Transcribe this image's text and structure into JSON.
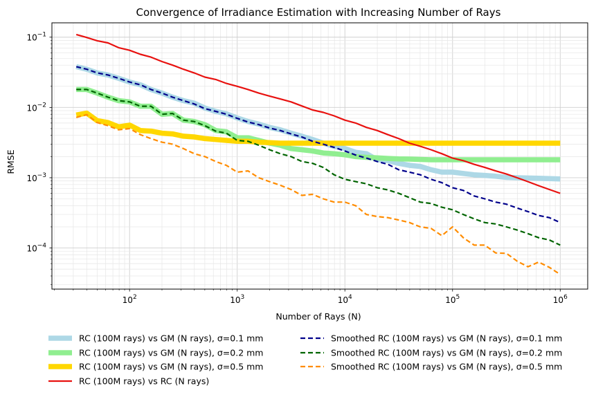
{
  "chart_data": {
    "type": "line",
    "title": "Convergence of Irradiance Estimation with Increasing Number of Rays",
    "xlabel": "Number of Rays (N)",
    "ylabel": "RMSE",
    "xscale": "log",
    "yscale": "log",
    "xlim": [
      19,
      1800000
    ],
    "ylim": [
      2.6e-05,
      0.16
    ],
    "grid": "on (major and minor)",
    "legend_placement": "below plot, two columns",
    "x_ticks": [
      {
        "label": "10",
        "sup": "2",
        "value": 100
      },
      {
        "label": "10",
        "sup": "3",
        "value": 1000
      },
      {
        "label": "10",
        "sup": "4",
        "value": 10000
      },
      {
        "label": "10",
        "sup": "5",
        "value": 100000
      },
      {
        "label": "10",
        "sup": "6",
        "value": 1000000
      }
    ],
    "y_ticks": [
      {
        "label": "10",
        "sup": "−1",
        "value": 0.1
      },
      {
        "label": "10",
        "sup": "−2",
        "value": 0.01
      },
      {
        "label": "10",
        "sup": "−3",
        "value": 0.001
      },
      {
        "label": "10",
        "sup": "−4",
        "value": 0.0001
      }
    ],
    "x": [
      32,
      40,
      50,
      63,
      79,
      100,
      126,
      158,
      200,
      251,
      316,
      398,
      501,
      631,
      794,
      1000,
      1259,
      1585,
      1995,
      2512,
      3162,
      3981,
      5012,
      6310,
      7943,
      10000,
      12589,
      15849,
      19953,
      25119,
      31623,
      39811,
      50119,
      63096,
      79433,
      100000,
      125893,
      158489,
      199526,
      251189,
      316228,
      398107,
      501187,
      630957,
      794328,
      1000000
    ],
    "series": [
      {
        "name": "RC (100M rays) vs GM (N rays), σ=0.1 mm",
        "color": "#add8e6",
        "style": "solid-thick",
        "values": [
          0.038,
          0.035,
          0.031,
          0.029,
          0.026,
          0.023,
          0.021,
          0.018,
          0.016,
          0.014,
          0.0125,
          0.0115,
          0.0098,
          0.0088,
          0.0081,
          0.0071,
          0.0063,
          0.0058,
          0.0052,
          0.0048,
          0.0043,
          0.0039,
          0.0035,
          0.0031,
          0.0028,
          0.0026,
          0.0023,
          0.0022,
          0.0018,
          0.00175,
          0.0016,
          0.0015,
          0.00145,
          0.0013,
          0.0012,
          0.0012,
          0.00115,
          0.0011,
          0.00108,
          0.00105,
          0.00101,
          0.001,
          0.00099,
          0.00098,
          0.00097,
          0.00096
        ]
      },
      {
        "name": "RC (100M rays) vs GM (N rays), σ=0.2 mm",
        "color": "#90ee90",
        "style": "solid-thick",
        "values": [
          0.018,
          0.018,
          0.016,
          0.014,
          0.0125,
          0.012,
          0.0104,
          0.0104,
          0.008,
          0.0082,
          0.0066,
          0.0063,
          0.0057,
          0.0047,
          0.0045,
          0.0037,
          0.0037,
          0.0034,
          0.0031,
          0.0029,
          0.0026,
          0.0025,
          0.0024,
          0.00225,
          0.0022,
          0.00212,
          0.002,
          0.00195,
          0.00192,
          0.00188,
          0.00185,
          0.00184,
          0.00182,
          0.0018,
          0.0018,
          0.0018,
          0.0018,
          0.0018,
          0.0018,
          0.0018,
          0.0018,
          0.0018,
          0.0018,
          0.0018,
          0.0018,
          0.0018
        ]
      },
      {
        "name": "RC (100M rays) vs GM (N rays), σ=0.5 mm",
        "color": "#ffd700",
        "style": "solid-thick",
        "values": [
          0.0078,
          0.0083,
          0.0065,
          0.0061,
          0.0053,
          0.0056,
          0.0047,
          0.0046,
          0.0043,
          0.0042,
          0.0039,
          0.0038,
          0.0036,
          0.0035,
          0.0034,
          0.0033,
          0.0033,
          0.0032,
          0.00315,
          0.0031,
          0.0031,
          0.0031,
          0.0031,
          0.0031,
          0.0031,
          0.0031,
          0.0031,
          0.0031,
          0.0031,
          0.0031,
          0.0031,
          0.0031,
          0.0031,
          0.0031,
          0.0031,
          0.0031,
          0.0031,
          0.0031,
          0.0031,
          0.0031,
          0.0031,
          0.0031,
          0.0031,
          0.0031,
          0.0031,
          0.0031
        ]
      },
      {
        "name": "RC (100M rays) vs RC (N rays)",
        "color": "#e8110f",
        "style": "solid",
        "values": [
          0.109,
          0.099,
          0.089,
          0.083,
          0.071,
          0.065,
          0.057,
          0.052,
          0.045,
          0.04,
          0.035,
          0.031,
          0.027,
          0.025,
          0.022,
          0.02,
          0.018,
          0.016,
          0.0145,
          0.0132,
          0.012,
          0.0105,
          0.0092,
          0.0085,
          0.0076,
          0.0066,
          0.006,
          0.0052,
          0.0047,
          0.0041,
          0.0036,
          0.0031,
          0.0028,
          0.0025,
          0.0022,
          0.0019,
          0.00175,
          0.00155,
          0.0014,
          0.00125,
          0.00113,
          0.001,
          0.00088,
          0.00077,
          0.00068,
          0.0006
        ]
      },
      {
        "name": "Smoothed RC (100M rays) vs GM (N rays), σ=0.1 mm",
        "color": "#00008b",
        "style": "dashed",
        "values": [
          0.038,
          0.035,
          0.031,
          0.029,
          0.026,
          0.023,
          0.021,
          0.018,
          0.016,
          0.014,
          0.0125,
          0.0112,
          0.0096,
          0.0088,
          0.008,
          0.007,
          0.0062,
          0.0057,
          0.0051,
          0.0047,
          0.0042,
          0.0038,
          0.0033,
          0.003,
          0.0027,
          0.0024,
          0.0021,
          0.0019,
          0.0017,
          0.00155,
          0.0013,
          0.0012,
          0.0011,
          0.00095,
          0.00085,
          0.00072,
          0.00066,
          0.00055,
          0.0005,
          0.00045,
          0.00042,
          0.00037,
          0.00033,
          0.00029,
          0.00027,
          0.00023
        ]
      },
      {
        "name": "Smoothed RC (100M rays) vs GM (N rays), σ=0.2 mm",
        "color": "#006400",
        "style": "dashed",
        "values": [
          0.018,
          0.018,
          0.016,
          0.014,
          0.0125,
          0.012,
          0.0104,
          0.0104,
          0.008,
          0.0082,
          0.0066,
          0.0063,
          0.0055,
          0.0046,
          0.0043,
          0.0034,
          0.0033,
          0.0029,
          0.0025,
          0.0022,
          0.002,
          0.0017,
          0.0016,
          0.0014,
          0.0011,
          0.00095,
          0.00088,
          0.00082,
          0.00072,
          0.00067,
          0.0006,
          0.00052,
          0.00045,
          0.00043,
          0.00038,
          0.00035,
          0.0003,
          0.00026,
          0.00023,
          0.00022,
          0.0002,
          0.00018,
          0.00016,
          0.00014,
          0.00013,
          0.00011
        ]
      },
      {
        "name": "Smoothed RC (100M rays) vs GM (N rays), σ=0.5 mm",
        "color": "#ff8c00",
        "style": "dashed",
        "values": [
          0.0072,
          0.0079,
          0.0061,
          0.0055,
          0.0048,
          0.005,
          0.0041,
          0.0036,
          0.0032,
          0.003,
          0.0026,
          0.0022,
          0.002,
          0.0017,
          0.0015,
          0.0012,
          0.00125,
          0.001,
          0.00088,
          0.00078,
          0.00068,
          0.00056,
          0.00058,
          0.0005,
          0.00045,
          0.00045,
          0.0004,
          0.0003,
          0.00028,
          0.00027,
          0.00025,
          0.00023,
          0.0002,
          0.00019,
          0.00015,
          0.0002,
          0.00014,
          0.00011,
          0.00011,
          8.5e-05,
          8.4e-05,
          6.5e-05,
          5.4e-05,
          6.3e-05,
          5.3e-05,
          4.2e-05
        ]
      }
    ]
  }
}
